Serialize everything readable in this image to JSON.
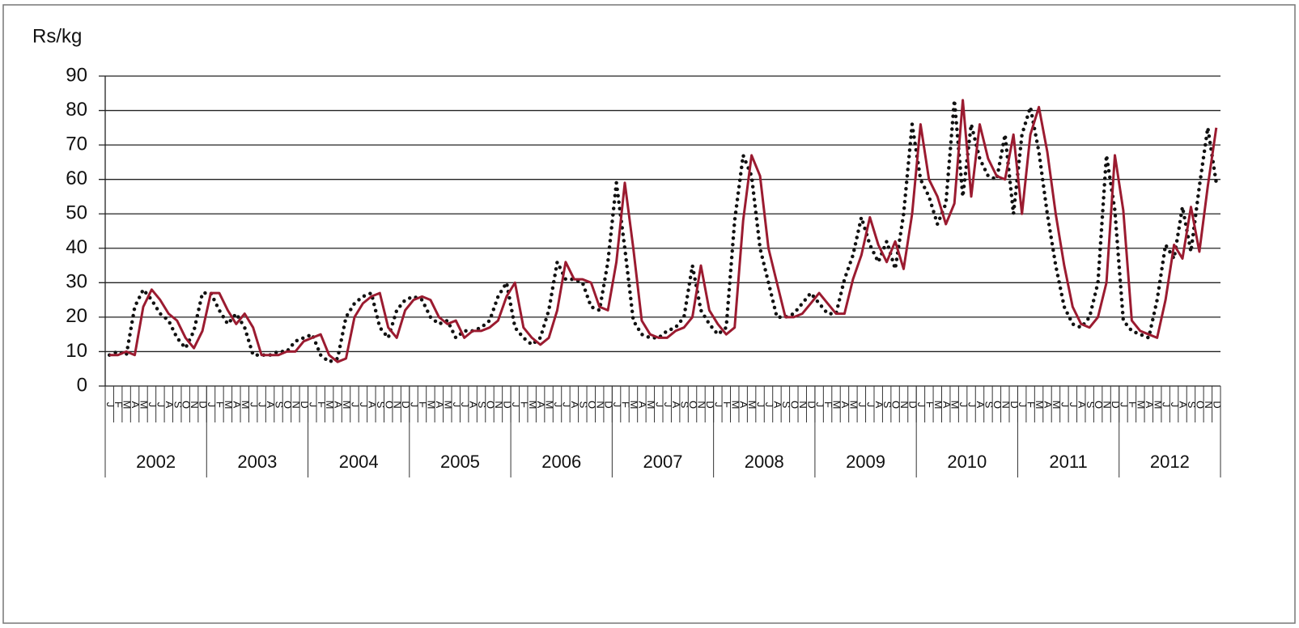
{
  "chart_data": {
    "type": "line",
    "y_label": "Rs/kg",
    "categories": [
      "J",
      "F",
      "M",
      "A",
      "M",
      "J",
      "J",
      "A",
      "S",
      "O",
      "N",
      "D",
      "J",
      "F",
      "M",
      "A",
      "M",
      "J",
      "J",
      "A",
      "S",
      "O",
      "N",
      "D",
      "J",
      "F",
      "M",
      "A",
      "M",
      "J",
      "J",
      "A",
      "S",
      "O",
      "N",
      "D",
      "J",
      "F",
      "M",
      "A",
      "M",
      "J",
      "J",
      "A",
      "S",
      "O",
      "N",
      "D",
      "J",
      "F",
      "M",
      "A",
      "M",
      "J",
      "J",
      "A",
      "S",
      "O",
      "N",
      "D",
      "J",
      "F",
      "M",
      "A",
      "M",
      "J",
      "J",
      "A",
      "S",
      "O",
      "N",
      "D",
      "J",
      "F",
      "M",
      "A",
      "M",
      "J",
      "J",
      "A",
      "S",
      "O",
      "N",
      "D",
      "J",
      "F",
      "M",
      "A",
      "M",
      "J",
      "J",
      "A",
      "S",
      "O",
      "N",
      "D",
      "J",
      "F",
      "M",
      "A",
      "M",
      "J",
      "J",
      "A",
      "S",
      "O",
      "N",
      "D",
      "J",
      "F",
      "M",
      "A",
      "M",
      "J",
      "J",
      "A",
      "S",
      "O",
      "N",
      "D",
      "J",
      "F",
      "M",
      "A",
      "M",
      "J",
      "J",
      "A",
      "S",
      "O",
      "N",
      "D"
    ],
    "years": [
      "2002",
      "2003",
      "2004",
      "2005",
      "2006",
      "2007",
      "2008",
      "2009",
      "2010",
      "2011",
      "2012"
    ],
    "series": [
      {
        "color": "#9b1b30",
        "style": "solid",
        "values": [
          9,
          9,
          10,
          9,
          23,
          28,
          25,
          21,
          19,
          14,
          11,
          16,
          27,
          27,
          22,
          18,
          21,
          17,
          9,
          9,
          9,
          10,
          10,
          13,
          14,
          15,
          9,
          7,
          8,
          20,
          24,
          26,
          27,
          17,
          14,
          22,
          25,
          26,
          25,
          20,
          18,
          19,
          14,
          16,
          16,
          17,
          19,
          26,
          30,
          17,
          14,
          12,
          14,
          22,
          36,
          31,
          31,
          30,
          23,
          22,
          36,
          59,
          40,
          19,
          15,
          14,
          14,
          16,
          17,
          20,
          35,
          22,
          18,
          15,
          17,
          48,
          67,
          61,
          40,
          30,
          20,
          20,
          21,
          24,
          27,
          24,
          21,
          21,
          31,
          38,
          49,
          41,
          36,
          42,
          34,
          50,
          76,
          60,
          55,
          47,
          53,
          83,
          55,
          76,
          66,
          61,
          60,
          73,
          50,
          73,
          81,
          68,
          50,
          35,
          23,
          18,
          17,
          20,
          30,
          67,
          51,
          19,
          16,
          15,
          14,
          25,
          41,
          37,
          52,
          39,
          58,
          75
        ]
      },
      {
        "color": "#111111",
        "style": "dotted",
        "values": [
          9,
          10,
          9,
          23,
          28,
          25,
          21,
          19,
          14,
          11,
          16,
          27,
          27,
          22,
          18,
          21,
          17,
          9,
          9,
          9,
          10,
          10,
          13,
          14,
          15,
          9,
          7,
          8,
          20,
          24,
          26,
          27,
          17,
          14,
          22,
          25,
          26,
          25,
          20,
          18,
          19,
          14,
          16,
          16,
          17,
          19,
          26,
          30,
          17,
          14,
          12,
          14,
          22,
          36,
          31,
          31,
          30,
          23,
          22,
          36,
          59,
          40,
          19,
          15,
          14,
          14,
          16,
          17,
          20,
          35,
          22,
          18,
          15,
          17,
          48,
          67,
          61,
          40,
          30,
          20,
          20,
          21,
          24,
          27,
          24,
          21,
          21,
          31,
          38,
          49,
          41,
          36,
          42,
          34,
          50,
          76,
          60,
          55,
          47,
          53,
          83,
          55,
          76,
          66,
          61,
          60,
          73,
          50,
          73,
          81,
          68,
          50,
          35,
          23,
          18,
          17,
          20,
          30,
          67,
          51,
          19,
          16,
          15,
          14,
          25,
          41,
          37,
          52,
          39,
          58,
          75,
          59
        ]
      }
    ],
    "ylim": [
      0,
      90
    ],
    "yticks": [
      0,
      10,
      20,
      30,
      40,
      50,
      60,
      70,
      80,
      90
    ],
    "grid": true
  }
}
